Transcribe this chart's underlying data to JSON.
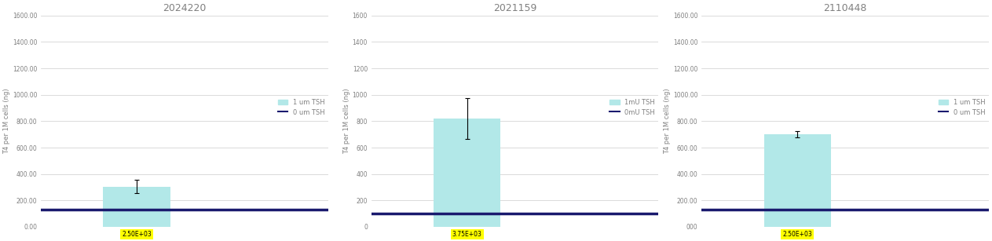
{
  "panels": [
    {
      "title": "2024220",
      "bar_value": 305,
      "bar_error": 50,
      "baseline": 130,
      "ylim": [
        0,
        1600
      ],
      "yticks": [
        0,
        200,
        400,
        600,
        800,
        1000,
        1200,
        1400,
        1600
      ],
      "ytick_labels": [
        "0.00",
        "200.00",
        "400.00",
        "600.00",
        "800.00",
        "1000.00",
        "1200.00",
        "1400.00",
        "1600.00"
      ],
      "xlabel_text": "2.50E+03",
      "legend_bar": "1 um TSH",
      "legend_line": "0 um TSH"
    },
    {
      "title": "2021159",
      "bar_value": 820,
      "bar_error": 155,
      "baseline": 100,
      "ylim": [
        0,
        1600
      ],
      "yticks": [
        0,
        200,
        400,
        600,
        800,
        1000,
        1200,
        1400,
        1600
      ],
      "ytick_labels": [
        "0",
        "200",
        "400",
        "600",
        "800",
        "1000",
        "1200",
        "1400",
        "1600"
      ],
      "xlabel_text": "3.75E+03",
      "legend_bar": "1mU TSH",
      "legend_line": "0mU TSH"
    },
    {
      "title": "2110448",
      "bar_value": 700,
      "bar_error": 22,
      "baseline": 130,
      "ylim": [
        0,
        1600
      ],
      "yticks": [
        0,
        200,
        400,
        600,
        800,
        1000,
        1200,
        1400,
        1600
      ],
      "ytick_labels": [
        "000",
        "200.00",
        "400.00",
        "600.00",
        "800.00",
        "1000.00",
        "1200.00",
        "1400.00",
        "1600.00"
      ],
      "xlabel_text": "2.50E+03",
      "legend_bar": "1 um TSH",
      "legend_line": "0 um TSH"
    }
  ],
  "bar_color": "#b2e8e8",
  "line_color": "#1a1a6e",
  "ylabel": "T4 per 1M cells (ng)",
  "title_fontsize": 9,
  "tick_fontsize": 5.5,
  "ylabel_fontsize": 6,
  "legend_fontsize": 6,
  "grid_color": "#cccccc",
  "fig_width": 12.63,
  "fig_height": 3.07
}
